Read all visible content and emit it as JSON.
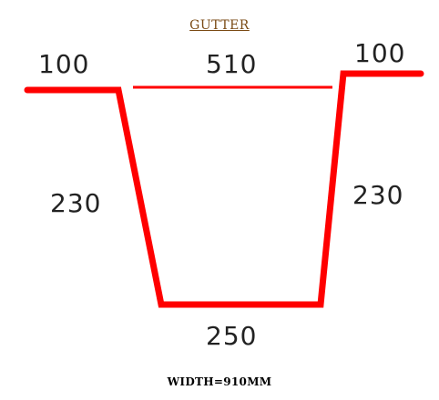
{
  "title": "GUTTER",
  "dimensions": {
    "left_flange": "100",
    "right_flange": "100",
    "top_width": "510",
    "left_side": "230",
    "right_side": "230",
    "bottom": "250"
  },
  "footer": "WIDTH=910MM",
  "colors": {
    "profile": "#ff0000",
    "title": "#7a4a14",
    "text": "#222222"
  }
}
